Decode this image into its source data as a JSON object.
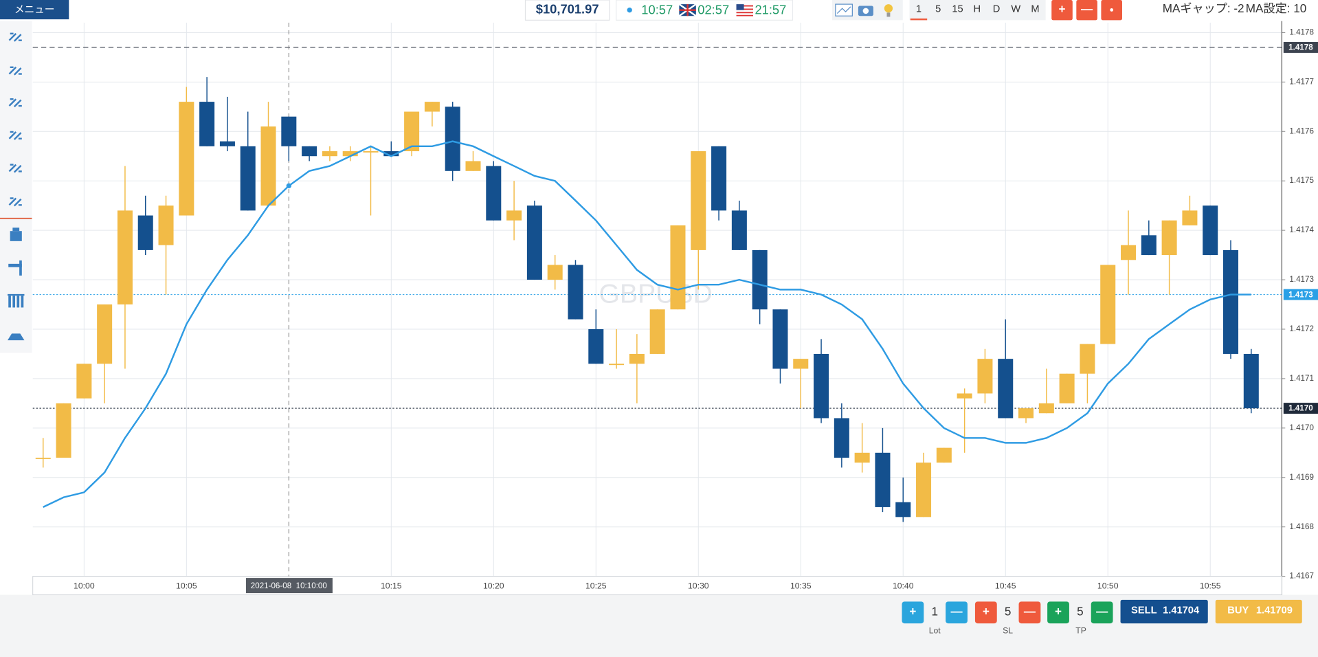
{
  "toolbar": {
    "menu": "メニュー",
    "balance": "$10,701.97",
    "clocks": [
      "10:57",
      "02:57",
      "21:57"
    ],
    "timeframes": [
      "1",
      "5",
      "15",
      "H",
      "D",
      "W",
      "M"
    ],
    "zoom_buttons": [
      "+",
      "—",
      "●"
    ],
    "ma_gap": "MAギャップ: -2",
    "ma_setting": "MA設定: 10"
  },
  "chart_data": {
    "type": "candlestick",
    "watermark": "GBPUSD",
    "x": [
      "09:58",
      "09:59",
      "10:00",
      "10:01",
      "10:02",
      "10:03",
      "10:04",
      "10:05",
      "10:06",
      "10:07",
      "10:08",
      "10:09",
      "10:10",
      "10:11",
      "10:12",
      "10:13",
      "10:14",
      "10:15",
      "10:16",
      "10:17",
      "10:18",
      "10:19",
      "10:20",
      "10:21",
      "10:22",
      "10:23",
      "10:24",
      "10:25",
      "10:26",
      "10:27",
      "10:28",
      "10:29",
      "10:30",
      "10:31",
      "10:32",
      "10:33",
      "10:34",
      "10:35",
      "10:36",
      "10:37",
      "10:38",
      "10:39",
      "10:40",
      "10:41",
      "10:42",
      "10:43",
      "10:44",
      "10:45",
      "10:46",
      "10:47",
      "10:48",
      "10:49",
      "10:50",
      "10:51",
      "10:52",
      "10:53",
      "10:54",
      "10:55",
      "10:56",
      "10:57"
    ],
    "open": [
      1.41694,
      1.41694,
      1.41706,
      1.41713,
      1.41725,
      1.41743,
      1.41737,
      1.41743,
      1.41766,
      1.41758,
      1.41757,
      1.41745,
      1.41763,
      1.41757,
      1.41755,
      1.41755,
      1.41756,
      1.41756,
      1.41756,
      1.41764,
      1.41765,
      1.41752,
      1.41753,
      1.41742,
      1.41745,
      1.4173,
      1.41733,
      1.4172,
      1.41713,
      1.41713,
      1.41715,
      1.41724,
      1.41736,
      1.41757,
      1.41744,
      1.41736,
      1.41724,
      1.41712,
      1.41715,
      1.41702,
      1.41693,
      1.41695,
      1.41685,
      1.41682,
      1.41693,
      1.41706,
      1.41707,
      1.41714,
      1.41702,
      1.41703,
      1.41705,
      1.41711,
      1.41717,
      1.41734,
      1.41739,
      1.41735,
      1.41741,
      1.41745,
      1.41736,
      1.41715
    ],
    "high": [
      1.41698,
      1.41705,
      1.41713,
      1.41725,
      1.41753,
      1.41747,
      1.41747,
      1.41769,
      1.41771,
      1.41767,
      1.41764,
      1.41766,
      1.41763,
      1.41757,
      1.41757,
      1.41757,
      1.41757,
      1.41758,
      1.41764,
      1.41766,
      1.41766,
      1.41756,
      1.41754,
      1.4175,
      1.41746,
      1.41735,
      1.41734,
      1.41724,
      1.4172,
      1.41719,
      1.41724,
      1.41741,
      1.41756,
      1.41757,
      1.41746,
      1.41736,
      1.41724,
      1.41714,
      1.41718,
      1.41705,
      1.41701,
      1.417,
      1.4169,
      1.41695,
      1.41696,
      1.41708,
      1.41716,
      1.41722,
      1.41704,
      1.41712,
      1.41711,
      1.41717,
      1.41733,
      1.41744,
      1.41742,
      1.41742,
      1.41747,
      1.41745,
      1.41738,
      1.41716
    ],
    "low": [
      1.41692,
      1.41694,
      1.41706,
      1.41705,
      1.41712,
      1.41735,
      1.41727,
      1.41743,
      1.41757,
      1.41756,
      1.41744,
      1.41745,
      1.41754,
      1.41754,
      1.41754,
      1.41754,
      1.41743,
      1.41755,
      1.41755,
      1.41761,
      1.4175,
      1.41752,
      1.41742,
      1.41738,
      1.4173,
      1.41728,
      1.41722,
      1.41713,
      1.41712,
      1.41705,
      1.41715,
      1.41724,
      1.41728,
      1.41742,
      1.41736,
      1.41721,
      1.41709,
      1.41704,
      1.41701,
      1.41692,
      1.41691,
      1.41683,
      1.41681,
      1.41682,
      1.41693,
      1.41695,
      1.41705,
      1.41702,
      1.41701,
      1.41703,
      1.41705,
      1.41705,
      1.41717,
      1.41727,
      1.41735,
      1.41727,
      1.41741,
      1.41735,
      1.41714,
      1.41703
    ],
    "close": [
      1.41694,
      1.41705,
      1.41713,
      1.41725,
      1.41744,
      1.41736,
      1.41745,
      1.41766,
      1.41757,
      1.41757,
      1.41744,
      1.41761,
      1.41757,
      1.41755,
      1.41756,
      1.41756,
      1.41756,
      1.41755,
      1.41764,
      1.41766,
      1.41752,
      1.41754,
      1.41742,
      1.41744,
      1.4173,
      1.41733,
      1.41722,
      1.41713,
      1.41713,
      1.41715,
      1.41724,
      1.41741,
      1.41756,
      1.41744,
      1.41736,
      1.41724,
      1.41712,
      1.41714,
      1.41702,
      1.41694,
      1.41695,
      1.41684,
      1.41682,
      1.41693,
      1.41696,
      1.41707,
      1.41714,
      1.41702,
      1.41704,
      1.41705,
      1.41711,
      1.41717,
      1.41733,
      1.41737,
      1.41735,
      1.41742,
      1.41744,
      1.41735,
      1.41715,
      1.41704
    ],
    "up_color": "#f2bb47",
    "down_color": "#14508e",
    "ma": {
      "color": "#2e9be3",
      "values": [
        1.41684,
        1.41686,
        1.41687,
        1.41691,
        1.41698,
        1.41704,
        1.41711,
        1.41721,
        1.41728,
        1.41734,
        1.41739,
        1.41745,
        1.41749,
        1.41752,
        1.41753,
        1.41755,
        1.41757,
        1.41755,
        1.41757,
        1.41757,
        1.41758,
        1.41757,
        1.41755,
        1.41753,
        1.41751,
        1.4175,
        1.41746,
        1.41742,
        1.41737,
        1.41732,
        1.41729,
        1.41728,
        1.41729,
        1.41729,
        1.4173,
        1.41729,
        1.41728,
        1.41728,
        1.41727,
        1.41725,
        1.41722,
        1.41716,
        1.41709,
        1.41704,
        1.417,
        1.41698,
        1.41698,
        1.41697,
        1.41697,
        1.41698,
        1.417,
        1.41703,
        1.41709,
        1.41713,
        1.41718,
        1.41721,
        1.41724,
        1.41726,
        1.41727,
        1.41727
      ]
    },
    "ylim": [
      1.4167,
      1.41782
    ],
    "yticks": [
      1.4167,
      1.4168,
      1.4169,
      {
        "value": 1.417,
        "label": "1.4170"
      },
      1.4171,
      1.4172,
      1.4173,
      1.4174,
      1.4175,
      1.4176,
      1.4177,
      1.4178
    ],
    "xticks": [
      "10:00",
      "10:05",
      "10:15",
      "10:20",
      "10:25",
      "10:30",
      "10:35",
      "10:40",
      "10:45",
      "10:50",
      "10:55"
    ],
    "grid": true,
    "price_tags": [
      {
        "value": 1.41777,
        "label": "1.4178",
        "color": "#3d4450",
        "line": "dashed"
      },
      {
        "value": 1.41727,
        "label": "1.4173",
        "color": "#2aa0e6",
        "line": "dotted"
      },
      {
        "value": 1.41704,
        "label": "1.4170",
        "color": "#1f2a3a",
        "line": "dotted"
      }
    ],
    "crosshair": {
      "x": "10:10",
      "label": "2021-06-08  10:10:00"
    }
  },
  "order_panel": {
    "lot": {
      "plus": "+",
      "value": 1,
      "minus": "—",
      "label": "Lot"
    },
    "sl": {
      "plus": "+",
      "value": 5,
      "minus": "—",
      "label": "SL"
    },
    "tp": {
      "plus": "+",
      "value": 5,
      "minus": "—",
      "label": "TP"
    },
    "sell": {
      "label": "SELL",
      "price": 1.41704
    },
    "buy": {
      "label": "BUY",
      "price": 1.41709
    }
  }
}
